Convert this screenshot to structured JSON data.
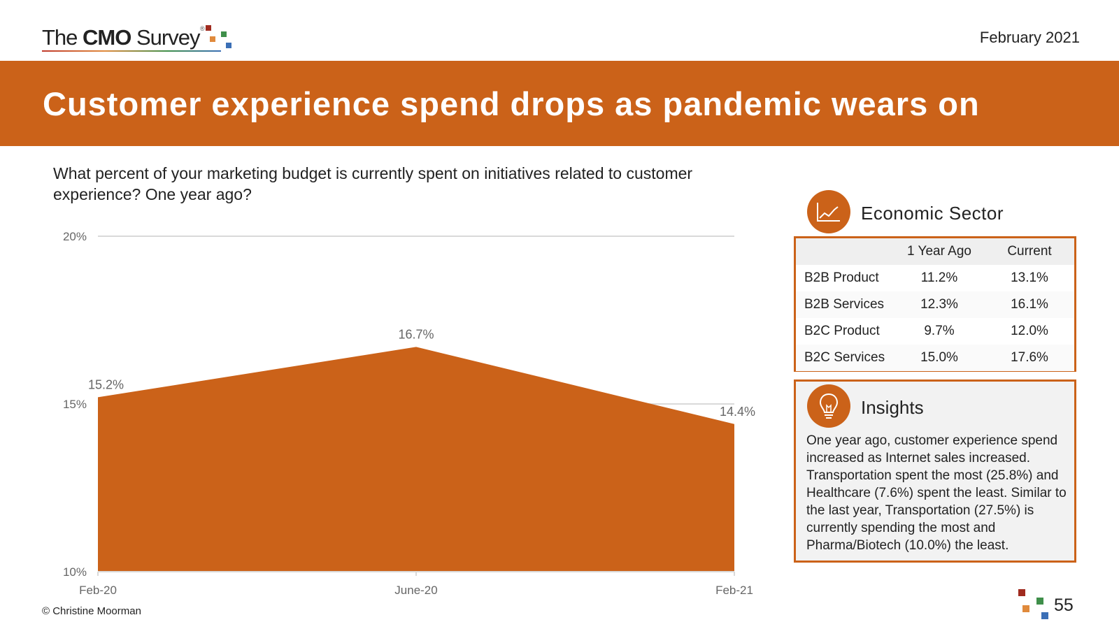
{
  "header": {
    "logo_the": "The",
    "logo_cmo": "CMO",
    "logo_survey": "Survey",
    "logo_reg": "®",
    "date": "February 2021"
  },
  "banner": {
    "title": "Customer experience spend drops as pandemic wears on"
  },
  "question": "What percent of your marketing budget is currently spent on initiatives related to customer experience? One year ago?",
  "chart_data": {
    "type": "area",
    "title": "",
    "xlabel": "",
    "ylabel": "",
    "categories": [
      "Feb-20",
      "June-20",
      "Feb-21"
    ],
    "series": [
      {
        "name": "Customer experience spend",
        "values": [
          15.2,
          16.7,
          14.4
        ]
      }
    ],
    "data_labels": [
      "15.2%",
      "16.7%",
      "14.4%"
    ],
    "ylim": [
      10,
      20
    ],
    "y_ticks": [
      10,
      15,
      20
    ],
    "y_tick_labels": [
      "10%",
      "15%",
      "20%"
    ],
    "grid": true,
    "fill_color": "#cb6219"
  },
  "sector": {
    "heading": "Economic Sector",
    "icon": "line-chart-icon",
    "columns": [
      "",
      "1 Year Ago",
      "Current"
    ],
    "rows": [
      [
        "B2B Product",
        "11.2%",
        "13.1%"
      ],
      [
        "B2B Services",
        "12.3%",
        "16.1%"
      ],
      [
        "B2C Product",
        "9.7%",
        "12.0%"
      ],
      [
        "B2C Services",
        "15.0%",
        "17.6%"
      ]
    ]
  },
  "insights": {
    "heading": "Insights",
    "icon": "lightbulb-icon",
    "text": "One year ago, customer experience spend increased as Internet sales increased. Transportation spent the most (25.8%) and Healthcare (7.6%) spent the least. Similar to the last year, Transportation (27.5%) is currently spending the most and Pharma/Biotech (10.0%) the least."
  },
  "footer": {
    "copyright": "© Christine Moorman",
    "page_number": "55"
  },
  "colors": {
    "accent": "#cb6219",
    "text": "#222222",
    "axis_text": "#666666",
    "grid": "#d9d9d9"
  }
}
